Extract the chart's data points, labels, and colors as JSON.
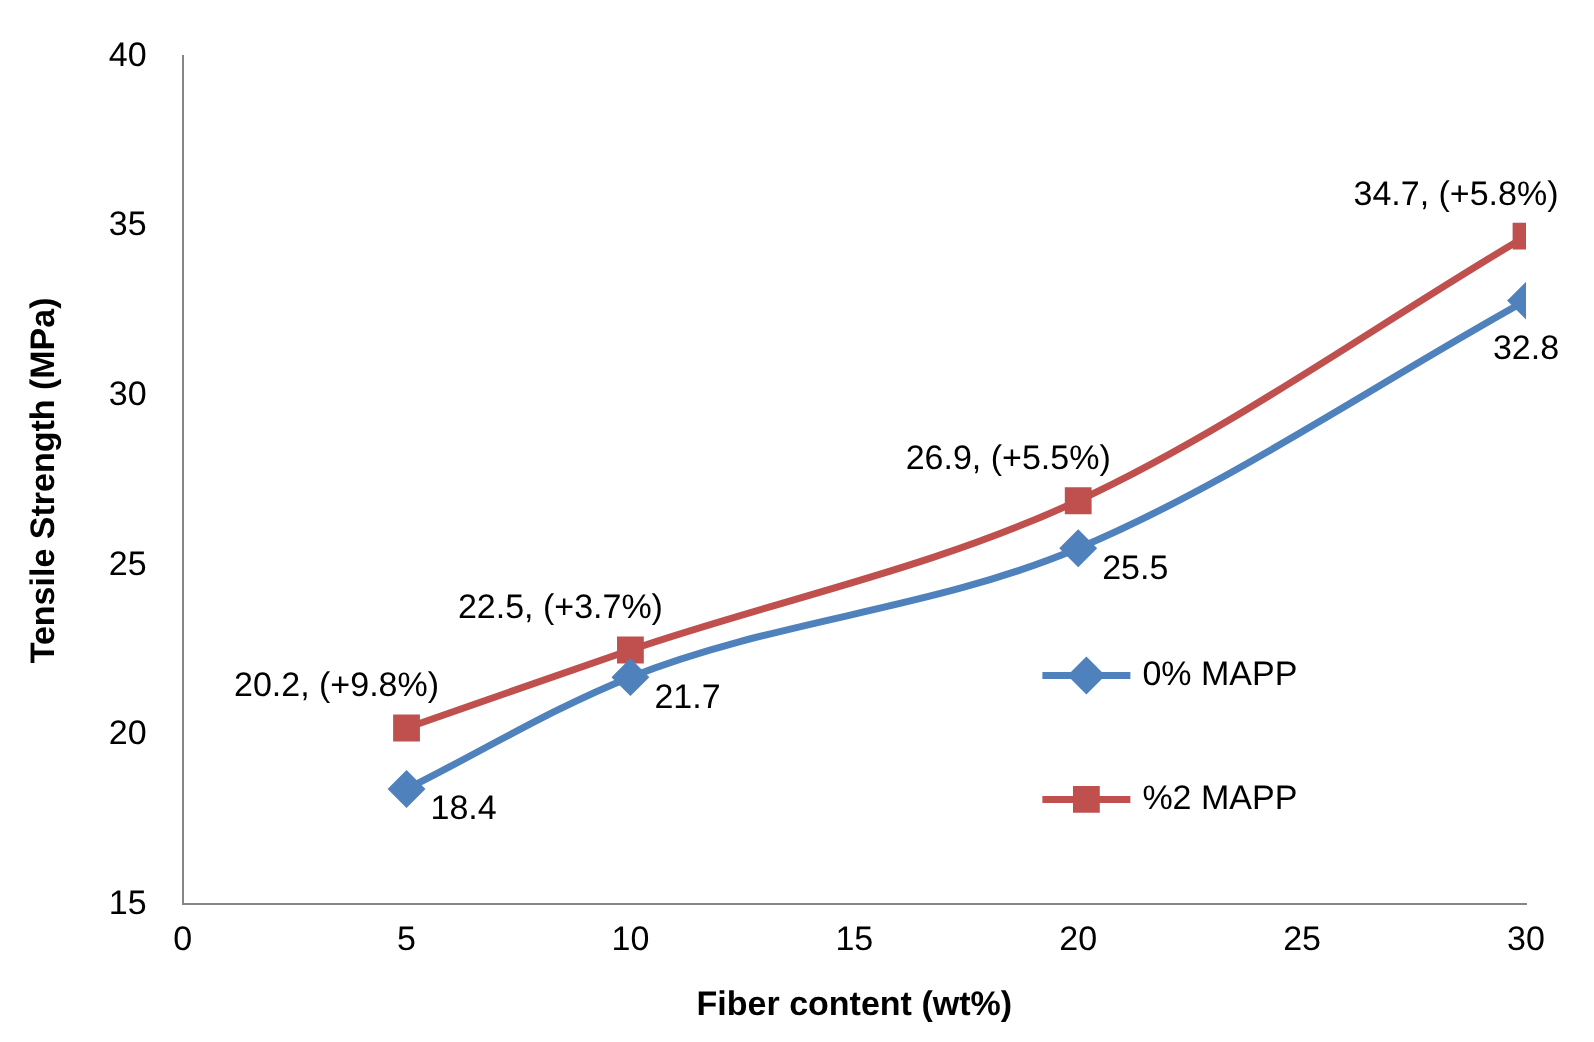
{
  "chart_data": {
    "type": "line",
    "xlabel": "Fiber content (wt%)",
    "ylabel": "Tensile Strength (MPa)",
    "x": [
      5,
      10,
      20,
      30
    ],
    "series": [
      {
        "name": "0% MAPP",
        "color": "#4f81bd",
        "values": [
          18.4,
          21.7,
          25.5,
          32.8
        ],
        "marker": "diamond",
        "value_labels": [
          "18.4",
          "21.7",
          "25.5",
          "32.8"
        ]
      },
      {
        "name": "%2 MAPP",
        "color": "#c0504d",
        "values": [
          20.2,
          22.5,
          26.9,
          34.7
        ],
        "marker": "square",
        "value_labels": [
          "20.2, (+9.8%)",
          "22.5, (+3.7%)",
          "26.9, (+5.5%)",
          "34.7, (+5.8%)"
        ]
      }
    ],
    "xlim": [
      0,
      30
    ],
    "xticks": [
      0,
      5,
      10,
      15,
      20,
      25,
      30
    ],
    "ylim": [
      15,
      40
    ],
    "yticks": [
      15,
      20,
      25,
      30,
      35,
      40
    ],
    "grid": false,
    "legend": "right",
    "line_style": "solid"
  }
}
